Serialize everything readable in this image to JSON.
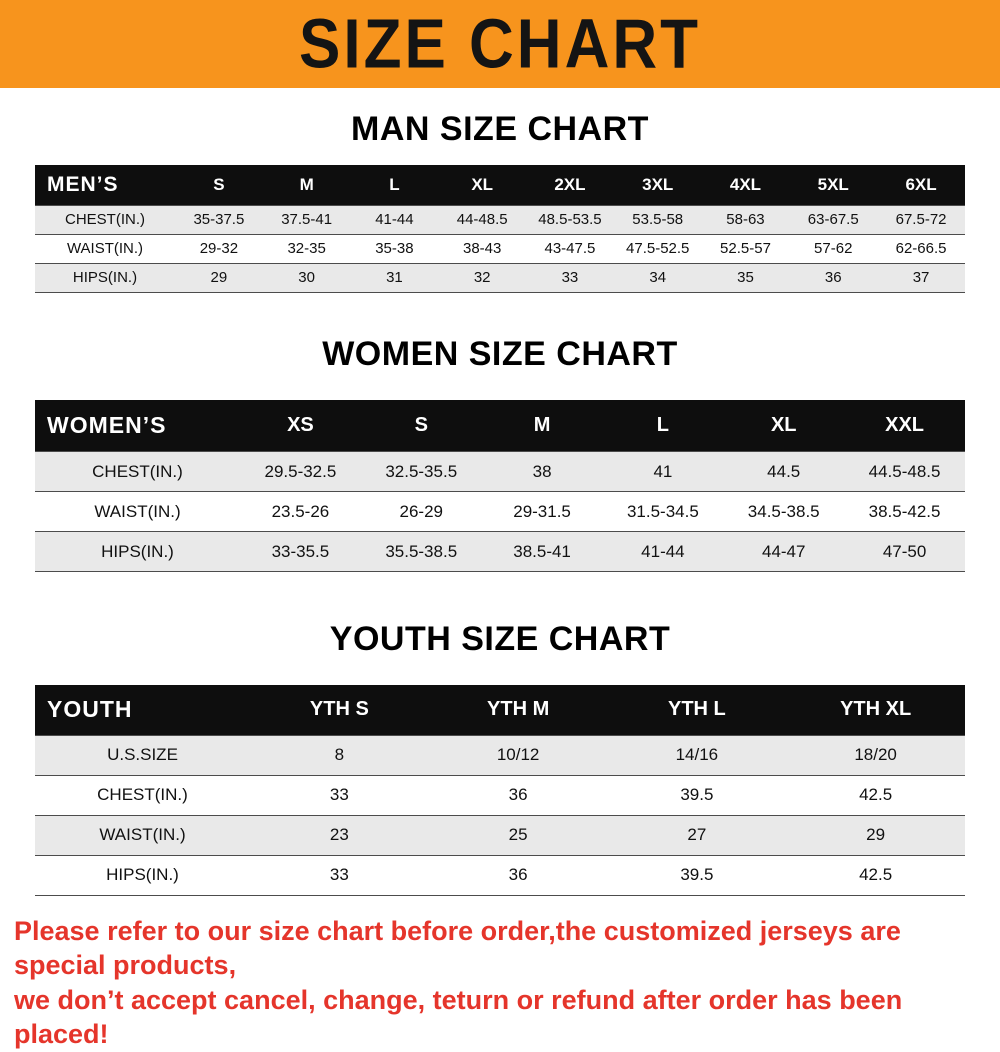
{
  "banner": {
    "title": "SIZE CHART",
    "bg_color": "#f7941d",
    "text_color": "#141414"
  },
  "sections": [
    {
      "heading": "MAN SIZE CHART",
      "corner_label": "MEN’S",
      "columns": [
        "S",
        "M",
        "L",
        "XL",
        "2XL",
        "3XL",
        "4XL",
        "5XL",
        "6XL"
      ],
      "rows": [
        {
          "label": "CHEST(IN.)",
          "values": [
            "35-37.5",
            "37.5-41",
            "41-44",
            "44-48.5",
            "48.5-53.5",
            "53.5-58",
            "58-63",
            "63-67.5",
            "67.5-72"
          ]
        },
        {
          "label": "WAIST(IN.)",
          "values": [
            "29-32",
            "32-35",
            "35-38",
            "38-43",
            "43-47.5",
            "47.5-52.5",
            "52.5-57",
            "57-62",
            "62-66.5"
          ]
        },
        {
          "label": "HIPS(IN.)",
          "values": [
            "29",
            "30",
            "31",
            "32",
            "33",
            "34",
            "35",
            "36",
            "37"
          ]
        }
      ]
    },
    {
      "heading": "WOMEN SIZE CHART",
      "corner_label": "WOMEN’S",
      "columns": [
        "XS",
        "S",
        "M",
        "L",
        "XL",
        "XXL"
      ],
      "rows": [
        {
          "label": "CHEST(IN.)",
          "values": [
            "29.5-32.5",
            "32.5-35.5",
            "38",
            "41",
            "44.5",
            "44.5-48.5"
          ]
        },
        {
          "label": "WAIST(IN.)",
          "values": [
            "23.5-26",
            "26-29",
            "29-31.5",
            "31.5-34.5",
            "34.5-38.5",
            "38.5-42.5"
          ]
        },
        {
          "label": "HIPS(IN.)",
          "values": [
            "33-35.5",
            "35.5-38.5",
            "38.5-41",
            "41-44",
            "44-47",
            "47-50"
          ]
        }
      ]
    },
    {
      "heading": "YOUTH SIZE CHART",
      "corner_label": "YOUTH",
      "columns": [
        "YTH S",
        "YTH M",
        "YTH L",
        "YTH XL"
      ],
      "rows": [
        {
          "label": "U.S.SIZE",
          "values": [
            "8",
            "10/12",
            "14/16",
            "18/20"
          ]
        },
        {
          "label": "CHEST(IN.)",
          "values": [
            "33",
            "36",
            "39.5",
            "42.5"
          ]
        },
        {
          "label": "WAIST(IN.)",
          "values": [
            "23",
            "25",
            "27",
            "29"
          ]
        },
        {
          "label": "HIPS(IN.)",
          "values": [
            "33",
            "36",
            "39.5",
            "42.5"
          ]
        }
      ]
    }
  ],
  "footer": {
    "line1": "Please refer to our size chart before order,the customized jerseys are special products,",
    "line2": "we don’t accept cancel, change, teturn or refund after order has been placed!",
    "text_color": "#e5352b"
  },
  "chart_data": [
    {
      "type": "table",
      "title": "MAN SIZE CHART",
      "columns": [
        "MEN’S",
        "S",
        "M",
        "L",
        "XL",
        "2XL",
        "3XL",
        "4XL",
        "5XL",
        "6XL"
      ],
      "rows": [
        [
          "CHEST(IN.)",
          "35-37.5",
          "37.5-41",
          "41-44",
          "44-48.5",
          "48.5-53.5",
          "53.5-58",
          "58-63",
          "63-67.5",
          "67.5-72"
        ],
        [
          "WAIST(IN.)",
          "29-32",
          "32-35",
          "35-38",
          "38-43",
          "43-47.5",
          "47.5-52.5",
          "52.5-57",
          "57-62",
          "62-66.5"
        ],
        [
          "HIPS(IN.)",
          "29",
          "30",
          "31",
          "32",
          "33",
          "34",
          "35",
          "36",
          "37"
        ]
      ]
    },
    {
      "type": "table",
      "title": "WOMEN SIZE CHART",
      "columns": [
        "WOMEN’S",
        "XS",
        "S",
        "M",
        "L",
        "XL",
        "XXL"
      ],
      "rows": [
        [
          "CHEST(IN.)",
          "29.5-32.5",
          "32.5-35.5",
          "38",
          "41",
          "44.5",
          "44.5-48.5"
        ],
        [
          "WAIST(IN.)",
          "23.5-26",
          "26-29",
          "29-31.5",
          "31.5-34.5",
          "34.5-38.5",
          "38.5-42.5"
        ],
        [
          "HIPS(IN.)",
          "33-35.5",
          "35.5-38.5",
          "38.5-41",
          "41-44",
          "44-47",
          "47-50"
        ]
      ]
    },
    {
      "type": "table",
      "title": "YOUTH SIZE CHART",
      "columns": [
        "YOUTH",
        "YTH S",
        "YTH M",
        "YTH L",
        "YTH XL"
      ],
      "rows": [
        [
          "U.S.SIZE",
          "8",
          "10/12",
          "14/16",
          "18/20"
        ],
        [
          "CHEST(IN.)",
          "33",
          "36",
          "39.5",
          "42.5"
        ],
        [
          "WAIST(IN.)",
          "23",
          "25",
          "27",
          "29"
        ],
        [
          "HIPS(IN.)",
          "33",
          "36",
          "39.5",
          "42.5"
        ]
      ]
    }
  ]
}
